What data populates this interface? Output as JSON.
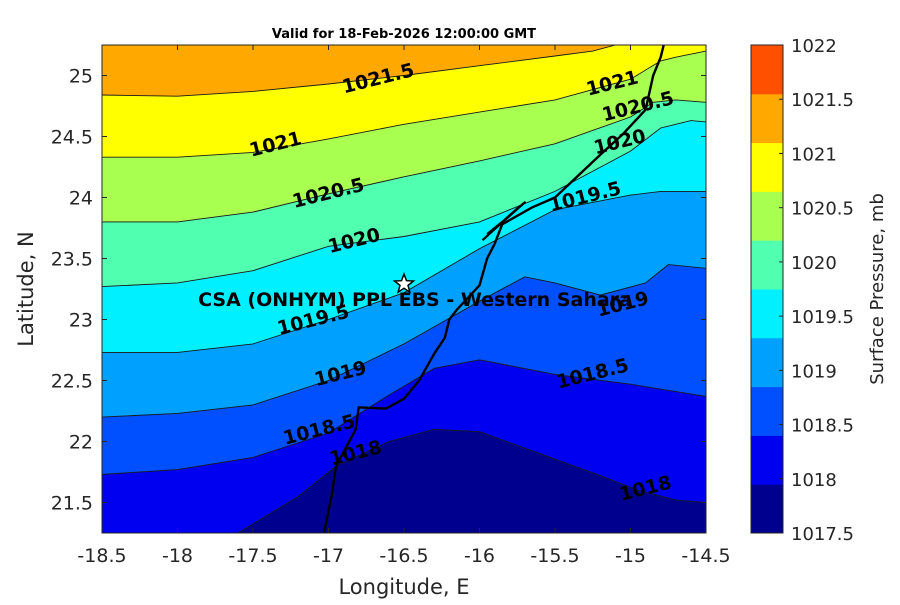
{
  "title": "Valid for 18-Feb-2026 12:00:00 GMT",
  "xlabel": "Longitude, E",
  "ylabel": "Latitude, N",
  "colorbar_label": "Surface Pressure, mb",
  "site_label": "CSA (ONHYM) PPL EBS  - Western Sahara",
  "site": {
    "lon": -16.5,
    "lat": 23.29
  },
  "x_ticks": [
    "-18.5",
    "-18",
    "-17.5",
    "-17",
    "-16.5",
    "-16",
    "-15.5",
    "-15",
    "-14.5"
  ],
  "y_ticks": [
    "21.5",
    "22",
    "22.5",
    "23",
    "23.5",
    "24",
    "24.5",
    "25"
  ],
  "colorbar_ticks": [
    "1017.5",
    "1018",
    "1018.5",
    "1019",
    "1019.5",
    "1020",
    "1020.5",
    "1021",
    "1021.5",
    "1022"
  ],
  "contour_labels": [
    {
      "text": "1021.5",
      "lon": -16.67,
      "lat": 24.97
    },
    {
      "text": "1021",
      "lon": -15.12,
      "lat": 24.93
    },
    {
      "text": "1020.5",
      "lon": -14.95,
      "lat": 24.74
    },
    {
      "text": "1020",
      "lon": -15.07,
      "lat": 24.45
    },
    {
      "text": "1021",
      "lon": -17.35,
      "lat": 24.43
    },
    {
      "text": "1020.5",
      "lon": -17.0,
      "lat": 24.03
    },
    {
      "text": "1019.5",
      "lon": -15.3,
      "lat": 24.0
    },
    {
      "text": "1020",
      "lon": -16.83,
      "lat": 23.64
    },
    {
      "text": "1019",
      "lon": -15.05,
      "lat": 23.12
    },
    {
      "text": "1019.5",
      "lon": -17.1,
      "lat": 22.99
    },
    {
      "text": "1019",
      "lon": -16.92,
      "lat": 22.55
    },
    {
      "text": "1018.5",
      "lon": -15.25,
      "lat": 22.55
    },
    {
      "text": "1018.5",
      "lon": -17.06,
      "lat": 22.09
    },
    {
      "text": "1018",
      "lon": -16.82,
      "lat": 21.9
    },
    {
      "text": "1018",
      "lon": -14.9,
      "lat": 21.61
    }
  ],
  "chart_data": {
    "type": "heatmap",
    "title": "Valid for 18-Feb-2026 12:00:00 GMT",
    "xlabel": "Longitude, E",
    "ylabel": "Latitude, N",
    "xlim": [
      -18.5,
      -14.5
    ],
    "ylim": [
      21.25,
      25.25
    ],
    "variable": "Surface Pressure, mb",
    "levels": [
      1017.5,
      1018,
      1018.5,
      1019,
      1019.5,
      1020,
      1020.5,
      1021,
      1021.5,
      1022
    ],
    "level_colors": [
      "#00008f",
      "#0000f0",
      "#0050ff",
      "#00a0ff",
      "#00f0ff",
      "#50ffb0",
      "#a8ff50",
      "#ffff00",
      "#ffa800",
      "#ff5000"
    ],
    "contour_lines": [
      {
        "level": 1021.5,
        "points": [
          [
            -18.5,
            24.84
          ],
          [
            -18.0,
            24.83
          ],
          [
            -17.5,
            24.87
          ],
          [
            -17.0,
            24.93
          ],
          [
            -16.5,
            25.0
          ],
          [
            -16.0,
            25.08
          ],
          [
            -15.5,
            25.16
          ],
          [
            -15.25,
            25.2
          ],
          [
            -15.1,
            25.25
          ]
        ]
      },
      {
        "level": 1021,
        "points": [
          [
            -18.5,
            24.33
          ],
          [
            -18.0,
            24.33
          ],
          [
            -17.5,
            24.37
          ],
          [
            -17.0,
            24.48
          ],
          [
            -16.5,
            24.6
          ],
          [
            -16.0,
            24.7
          ],
          [
            -15.5,
            24.8
          ],
          [
            -15.0,
            24.97
          ],
          [
            -14.8,
            25.12
          ],
          [
            -14.7,
            25.15
          ],
          [
            -14.5,
            25.2
          ]
        ]
      },
      {
        "level": 1020.5,
        "points": [
          [
            -18.5,
            23.8
          ],
          [
            -18.0,
            23.8
          ],
          [
            -17.5,
            23.88
          ],
          [
            -17.0,
            24.03
          ],
          [
            -16.5,
            24.17
          ],
          [
            -16.0,
            24.3
          ],
          [
            -15.5,
            24.44
          ],
          [
            -15.0,
            24.66
          ],
          [
            -14.85,
            24.78
          ],
          [
            -14.7,
            24.8
          ],
          [
            -14.5,
            24.78
          ]
        ]
      },
      {
        "level": 1020,
        "points": [
          [
            -18.5,
            23.27
          ],
          [
            -18.0,
            23.3
          ],
          [
            -17.5,
            23.4
          ],
          [
            -17.0,
            23.6
          ],
          [
            -16.5,
            23.68
          ],
          [
            -16.0,
            23.8
          ],
          [
            -15.5,
            24.05
          ],
          [
            -15.0,
            24.38
          ],
          [
            -14.8,
            24.57
          ],
          [
            -14.6,
            24.63
          ],
          [
            -14.5,
            24.62
          ]
        ]
      },
      {
        "level": 1019.5,
        "points": [
          [
            -18.5,
            22.73
          ],
          [
            -18.0,
            22.73
          ],
          [
            -17.5,
            22.8
          ],
          [
            -17.0,
            23.0
          ],
          [
            -16.5,
            23.22
          ],
          [
            -16.0,
            23.58
          ],
          [
            -15.5,
            23.9
          ],
          [
            -15.0,
            24.02
          ],
          [
            -14.8,
            24.05
          ],
          [
            -14.6,
            24.05
          ],
          [
            -14.5,
            24.05
          ]
        ]
      },
      {
        "level": 1019,
        "points": [
          [
            -18.5,
            22.2
          ],
          [
            -18.0,
            22.23
          ],
          [
            -17.5,
            22.3
          ],
          [
            -17.0,
            22.5
          ],
          [
            -16.5,
            22.8
          ],
          [
            -16.0,
            23.15
          ],
          [
            -15.7,
            23.35
          ],
          [
            -15.5,
            23.3
          ],
          [
            -15.2,
            23.2
          ],
          [
            -14.9,
            23.3
          ],
          [
            -14.75,
            23.45
          ],
          [
            -14.5,
            23.42
          ]
        ]
      },
      {
        "level": 1018.5,
        "points": [
          [
            -18.5,
            21.73
          ],
          [
            -18.0,
            21.77
          ],
          [
            -17.5,
            21.87
          ],
          [
            -17.0,
            22.07
          ],
          [
            -16.6,
            22.38
          ],
          [
            -16.3,
            22.6
          ],
          [
            -16.0,
            22.67
          ],
          [
            -15.5,
            22.55
          ],
          [
            -15.0,
            22.47
          ],
          [
            -14.5,
            22.37
          ]
        ]
      },
      {
        "level": 1018,
        "points": [
          [
            -17.6,
            21.25
          ],
          [
            -17.2,
            21.55
          ],
          [
            -16.95,
            21.8
          ],
          [
            -16.6,
            22.0
          ],
          [
            -16.3,
            22.1
          ],
          [
            -16.0,
            22.08
          ],
          [
            -15.6,
            21.9
          ],
          [
            -15.2,
            21.72
          ],
          [
            -14.95,
            21.6
          ],
          [
            -14.7,
            21.52
          ],
          [
            -14.5,
            21.5
          ]
        ]
      }
    ],
    "coastline": [
      [
        -17.03,
        21.25
      ],
      [
        -16.98,
        21.55
      ],
      [
        -16.95,
        21.8
      ],
      [
        -16.82,
        22.1
      ],
      [
        -16.8,
        22.28
      ],
      [
        -16.62,
        22.27
      ],
      [
        -16.5,
        22.35
      ],
      [
        -16.4,
        22.5
      ],
      [
        -16.3,
        22.72
      ],
      [
        -16.23,
        22.85
      ],
      [
        -16.2,
        23.0
      ],
      [
        -16.15,
        23.08
      ],
      [
        -16.0,
        23.28
      ],
      [
        -15.95,
        23.5
      ],
      [
        -15.9,
        23.62
      ],
      [
        -15.85,
        23.78
      ],
      [
        -15.65,
        23.92
      ],
      [
        -15.5,
        24.0
      ],
      [
        -15.2,
        24.35
      ],
      [
        -15.05,
        24.52
      ],
      [
        -14.9,
        24.72
      ],
      [
        -14.85,
        25.0
      ],
      [
        -14.8,
        25.15
      ],
      [
        -14.78,
        25.25
      ]
    ],
    "peninsula": [
      [
        -15.95,
        23.7
      ],
      [
        -15.85,
        23.8
      ],
      [
        -15.75,
        23.91
      ],
      [
        -15.7,
        23.96
      ],
      [
        -15.8,
        23.85
      ],
      [
        -15.9,
        23.74
      ],
      [
        -15.98,
        23.65
      ]
    ]
  }
}
